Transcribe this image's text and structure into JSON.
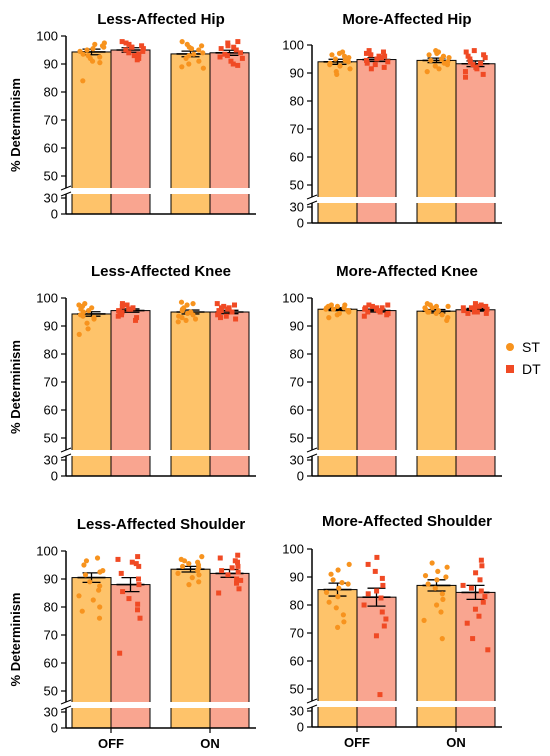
{
  "legend": {
    "placement": "right",
    "items": [
      {
        "label": "ST",
        "shape": "circle",
        "color": "#F7931E"
      },
      {
        "label": "DT",
        "shape": "square",
        "color": "#F04A24"
      }
    ]
  },
  "colors": {
    "st_bar": "#FEC36A",
    "dt_bar": "#F9A590",
    "st_point": "#F7931E",
    "dt_point": "#F04A24",
    "axis": "#000000"
  },
  "chart_data": [
    {
      "type": "bar",
      "title": "Less-Affected Hip",
      "ylabel": "% Determinism",
      "categories": [
        "OFF",
        "ON"
      ],
      "show_xticks": false,
      "yticks": [
        30,
        0,
        100,
        90,
        80,
        70,
        60,
        50
      ],
      "y_axis_break": [
        30,
        45
      ],
      "ylim": [
        0,
        100
      ],
      "series": [
        {
          "name": "ST",
          "values": [
            94.3,
            93.6
          ],
          "sem": [
            1.0,
            1.0
          ],
          "points": [
            [
              96.5,
              94.5,
              95.5,
              93.0,
              92.0,
              97.0,
              84.0,
              95.0,
              91.0,
              96.0,
              90.5,
              93.5,
              97.5,
              92.5
            ],
            [
              97.0,
              96.0,
              93.5,
              89.0,
              92.0,
              95.5,
              94.0,
              91.0,
              98.0,
              88.5,
              95.0,
              93.0,
              96.5,
              90.0
            ]
          ]
        },
        {
          "name": "DT",
          "values": [
            95.0,
            94.0
          ],
          "sem": [
            0.8,
            0.9
          ],
          "points": [
            [
              97.5,
              96.0,
              94.5,
              93.5,
              98.0,
              95.5,
              92.0,
              97.0,
              96.5,
              94.0,
              93.0,
              95.0,
              91.5,
              96.0
            ],
            [
              98.0,
              95.5,
              92.0,
              89.5,
              96.5,
              94.0,
              97.5,
              90.0,
              93.5,
              95.0,
              91.0,
              96.0,
              93.0,
              92.5
            ]
          ]
        }
      ]
    },
    {
      "type": "bar",
      "title": "More-Affected Hip",
      "ylabel": "",
      "categories": [
        "OFF",
        "ON"
      ],
      "show_xticks": false,
      "yticks": [
        30,
        0,
        100,
        90,
        80,
        70,
        60,
        50
      ],
      "y_axis_break": [
        30,
        45
      ],
      "ylim": [
        0,
        100
      ],
      "series": [
        {
          "name": "ST",
          "values": [
            94.0,
            94.5
          ],
          "sem": [
            0.9,
            0.8
          ],
          "points": [
            [
              96.5,
              95.0,
              93.0,
              97.0,
              91.5,
              94.0,
              89.5,
              96.0,
              92.5,
              95.5,
              90.5,
              93.5,
              97.5,
              94.5
            ],
            [
              97.5,
              95.5,
              93.0,
              98.0,
              96.0,
              91.5,
              94.0,
              92.5,
              96.5,
              95.0,
              93.5,
              94.5,
              97.0,
              90.5
            ]
          ]
        },
        {
          "name": "DT",
          "values": [
            94.8,
            93.3
          ],
          "sem": [
            0.7,
            1.0
          ],
          "points": [
            [
              97.5,
              96.0,
              94.0,
              93.0,
              98.0,
              95.5,
              92.0,
              96.5,
              95.0,
              93.5,
              97.0,
              91.5,
              94.5,
              96.0
            ],
            [
              98.0,
              96.0,
              93.5,
              89.5,
              95.0,
              92.0,
              97.5,
              90.5,
              94.0,
              88.5,
              96.5,
              91.5,
              93.0,
              95.5
            ]
          ]
        }
      ]
    },
    {
      "type": "bar",
      "title": "Less-Affected Knee",
      "ylabel": "% Determinism",
      "categories": [
        "OFF",
        "ON"
      ],
      "show_xticks": false,
      "yticks": [
        30,
        0,
        100,
        90,
        80,
        70,
        60,
        50
      ],
      "y_axis_break": [
        30,
        45
      ],
      "ylim": [
        0,
        100
      ],
      "series": [
        {
          "name": "ST",
          "values": [
            94.3,
            95.0
          ],
          "sem": [
            0.8,
            0.7
          ],
          "points": [
            [
              97.5,
              96.0,
              94.0,
              92.5,
              98.0,
              95.5,
              91.0,
              89.0,
              96.5,
              93.5,
              87.0,
              95.0,
              93.0,
              97.0
            ],
            [
              98.0,
              96.5,
              94.5,
              92.0,
              97.5,
              95.0,
              93.0,
              91.5,
              96.0,
              94.0,
              98.5,
              92.5,
              95.5,
              93.5
            ]
          ]
        },
        {
          "name": "DT",
          "values": [
            95.5,
            95.0
          ],
          "sem": [
            0.6,
            0.6
          ],
          "points": [
            [
              97.5,
              96.0,
              95.0,
              93.5,
              98.0,
              96.5,
              94.0,
              92.0,
              97.0,
              95.5,
              93.0,
              96.0,
              94.5,
              97.5
            ],
            [
              98.0,
              96.5,
              95.0,
              93.0,
              97.5,
              95.5,
              94.0,
              92.5,
              96.0,
              94.5,
              97.0,
              95.5,
              93.5,
              96.5
            ]
          ]
        }
      ]
    },
    {
      "type": "bar",
      "title": "More-Affected Knee",
      "ylabel": "",
      "categories": [
        "OFF",
        "ON"
      ],
      "show_xticks": false,
      "yticks": [
        30,
        0,
        100,
        90,
        80,
        70,
        60,
        50
      ],
      "y_axis_break": [
        30,
        45
      ],
      "ylim": [
        0,
        100
      ],
      "series": [
        {
          "name": "ST",
          "values": [
            96.0,
            95.3
          ],
          "sem": [
            0.5,
            0.6
          ],
          "points": [
            [
              97.5,
              96.5,
              95.5,
              97.0,
              96.0,
              94.0,
              97.5,
              95.0,
              96.5,
              93.0,
              97.0,
              95.5,
              96.0,
              94.5
            ],
            [
              98.0,
              96.5,
              94.5,
              97.5,
              93.0,
              96.0,
              95.0,
              97.0,
              92.0,
              96.5,
              95.5,
              94.0,
              97.0,
              95.0
            ]
          ]
        },
        {
          "name": "DT",
          "values": [
            95.5,
            95.8
          ],
          "sem": [
            0.5,
            0.5
          ],
          "points": [
            [
              97.5,
              96.5,
              95.0,
              96.0,
              94.0,
              97.0,
              95.5,
              96.5,
              94.5,
              97.5,
              95.0,
              96.0,
              93.5,
              96.5
            ],
            [
              98.0,
              97.0,
              96.5,
              95.0,
              97.5,
              96.0,
              94.5,
              97.0,
              95.5,
              96.5,
              97.5,
              95.0,
              96.0,
              94.5
            ]
          ]
        }
      ]
    },
    {
      "type": "bar",
      "title": "Less-Affected Shoulder",
      "ylabel": "% Determinism",
      "categories": [
        "OFF",
        "ON"
      ],
      "show_xticks": true,
      "yticks": [
        30,
        0,
        100,
        90,
        80,
        70,
        60,
        50
      ],
      "y_axis_break": [
        30,
        45
      ],
      "ylim": [
        0,
        100
      ],
      "series": [
        {
          "name": "ST",
          "values": [
            90.5,
            93.5
          ],
          "sem": [
            1.7,
            1.0
          ],
          "points": [
            [
              97.5,
              96.5,
              95.0,
              93.0,
              91.5,
              89.0,
              87.5,
              86.0,
              84.0,
              82.5,
              80.0,
              78.5,
              76.0,
              92.5
            ],
            [
              98.0,
              96.5,
              95.5,
              94.0,
              93.0,
              92.0,
              90.5,
              89.0,
              97.0,
              95.0,
              91.5,
              94.5,
              88.0,
              96.0
            ]
          ]
        },
        {
          "name": "DT",
          "values": [
            88.0,
            92.0
          ],
          "sem": [
            2.5,
            1.4
          ],
          "points": [
            [
              98.0,
              97.0,
              96.0,
              94.5,
              92.0,
              90.0,
              88.0,
              85.5,
              83.0,
              81.0,
              79.0,
              76.0,
              63.5,
              95.5
            ],
            [
              98.5,
              97.5,
              96.0,
              94.5,
              93.0,
              91.5,
              90.0,
              88.5,
              86.5,
              85.0,
              96.5,
              92.5,
              89.5,
              94.0
            ]
          ]
        }
      ]
    },
    {
      "type": "bar",
      "title": "More-Affected Shoulder",
      "ylabel": "",
      "categories": [
        "OFF",
        "ON"
      ],
      "show_xticks": true,
      "yticks": [
        30,
        0,
        100,
        90,
        80,
        70,
        60,
        50
      ],
      "y_axis_break": [
        30,
        45
      ],
      "ylim": [
        0,
        100
      ],
      "series": [
        {
          "name": "ST",
          "values": [
            85.5,
            87.0
          ],
          "sem": [
            2.3,
            2.0
          ],
          "points": [
            [
              94.5,
              92.5,
              91.0,
              89.0,
              87.5,
              86.0,
              84.5,
              83.0,
              81.0,
              79.0,
              76.5,
              74.0,
              72.0,
              88.0
            ],
            [
              95.0,
              93.5,
              92.0,
              90.5,
              89.0,
              87.5,
              86.0,
              84.0,
              82.0,
              80.0,
              77.5,
              74.5,
              68.0,
              90.0
            ]
          ]
        },
        {
          "name": "DT",
          "values": [
            82.8,
            84.5
          ],
          "sem": [
            3.2,
            2.5
          ],
          "points": [
            [
              97.0,
              94.5,
              92.0,
              89.5,
              87.0,
              85.0,
              82.5,
              80.0,
              77.5,
              75.0,
              72.5,
              69.0,
              48.0,
              84.0
            ],
            [
              96.0,
              94.0,
              91.5,
              89.0,
              87.0,
              85.0,
              83.0,
              81.0,
              78.5,
              76.0,
              73.5,
              68.0,
              64.0,
              86.0
            ]
          ]
        }
      ]
    }
  ]
}
